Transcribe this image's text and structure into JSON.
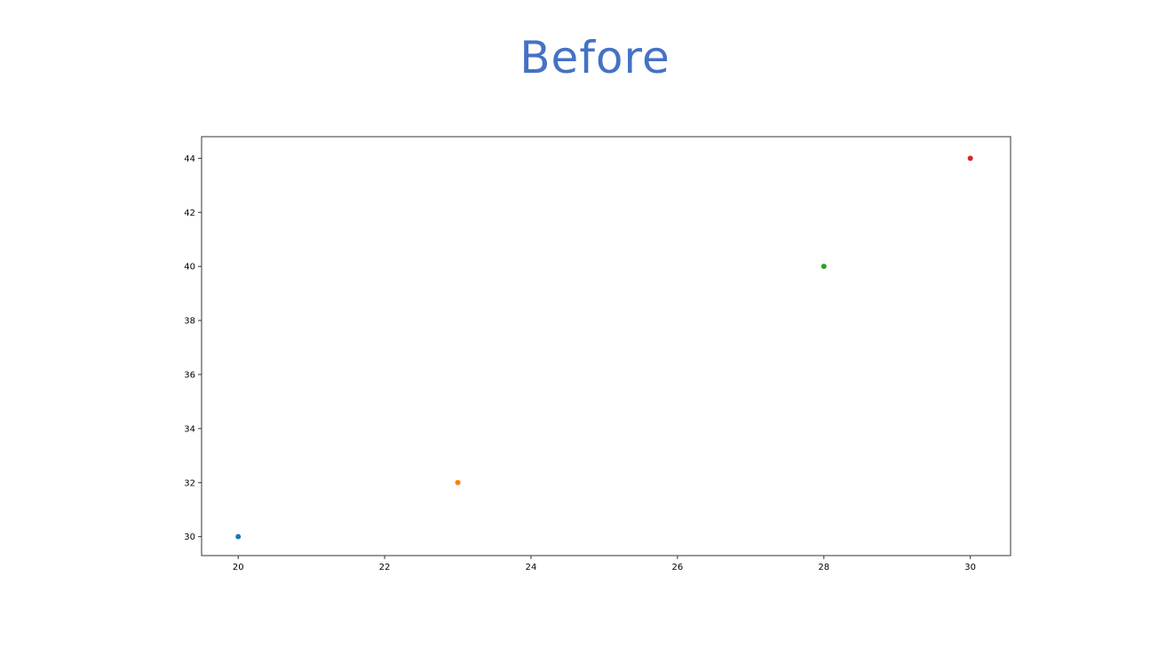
{
  "slide": {
    "title": "Before",
    "title_color": "#4472c4"
  },
  "chart_data": {
    "type": "scatter",
    "title": "",
    "xlabel": "",
    "ylabel": "",
    "xlim": [
      19.5,
      30.55
    ],
    "ylim": [
      29.3,
      44.8
    ],
    "xticks": [
      20,
      22,
      24,
      26,
      28,
      30
    ],
    "yticks": [
      30,
      32,
      34,
      36,
      38,
      40,
      42,
      44
    ],
    "grid": false,
    "points": [
      {
        "x": 20,
        "y": 30,
        "color": "#1f77b4"
      },
      {
        "x": 23,
        "y": 32,
        "color": "#ff7f0e"
      },
      {
        "x": 28,
        "y": 40,
        "color": "#2ca02c"
      },
      {
        "x": 30,
        "y": 44,
        "color": "#d62728"
      }
    ]
  }
}
